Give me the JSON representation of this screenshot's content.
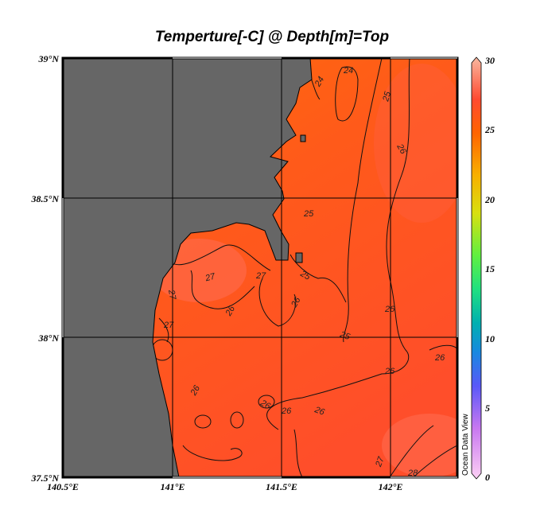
{
  "title": "Temperture[-C] @ Depth[m]=Top",
  "watermark": "Ocean Data View",
  "map": {
    "lon_range": [
      140.5,
      142.3
    ],
    "lat_range": [
      37.5,
      39.0
    ],
    "lon_ticks": [
      "140.5°E",
      "141°E",
      "141.5°E",
      "142°E"
    ],
    "lat_ticks": [
      "39°N",
      "38.5°N",
      "38°N",
      "37.5°N"
    ],
    "land_color": "#666666",
    "grid": true,
    "contour_labels": [
      "24",
      "24",
      "25",
      "25",
      "25",
      "25",
      "26",
      "26",
      "26",
      "26",
      "26",
      "26",
      "26",
      "26",
      "26",
      "26",
      "27",
      "27",
      "27",
      "27",
      "27",
      "28"
    ]
  },
  "colorbar": {
    "range": [
      0,
      30
    ],
    "ticks": [
      "30",
      "25",
      "20",
      "15",
      "10",
      "5",
      "0"
    ],
    "colors": [
      "#f8c8f0",
      "#c070f0",
      "#5058f8",
      "#1080e0",
      "#00b0b0",
      "#20e080",
      "#60f040",
      "#d8e010",
      "#f8a000",
      "#ff6000",
      "#ff4a30",
      "#f8a090"
    ]
  }
}
